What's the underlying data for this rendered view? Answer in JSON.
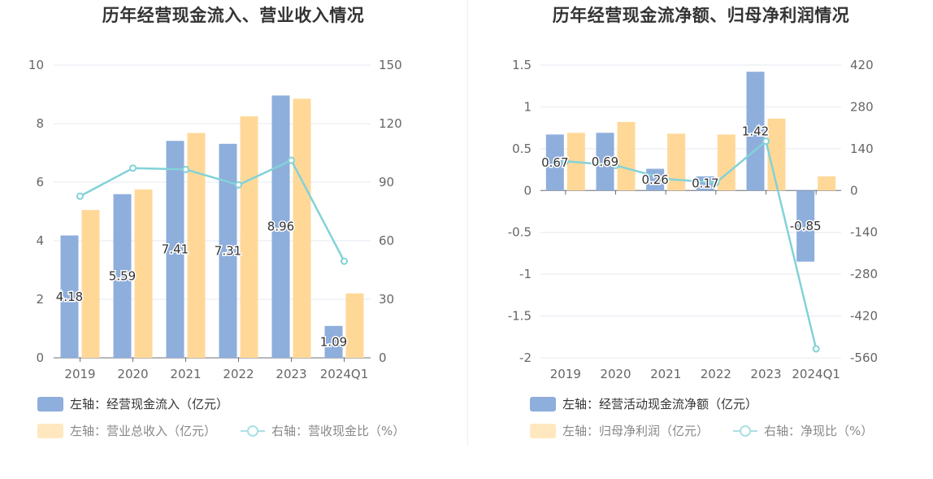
{
  "chart_data": [
    {
      "type": "bar",
      "title": "历年经营现金流入、营业收入情况",
      "categories": [
        "2019",
        "2020",
        "2021",
        "2022",
        "2023",
        "2024Q1"
      ],
      "y_left": {
        "min": 0,
        "max": 10,
        "ticks": [
          "0",
          "2",
          "4",
          "6",
          "8",
          "10"
        ]
      },
      "y_right": {
        "min": 0,
        "max": 150,
        "ticks": [
          "0",
          "30",
          "60",
          "90",
          "120",
          "150"
        ]
      },
      "series": [
        {
          "name": "左轴：经营现金流入（亿元）",
          "kind": "bar",
          "axis": "left",
          "color": "#8eaedc",
          "values": [
            4.18,
            5.59,
            7.41,
            7.31,
            8.96,
            1.09
          ],
          "labels": [
            "4.18",
            "5.59",
            "7.41",
            "7.31",
            "8.96",
            "1.09"
          ]
        },
        {
          "name": "左轴：营业总收入（亿元）",
          "kind": "bar",
          "axis": "left",
          "color": "#ffd898",
          "values": [
            5.05,
            5.75,
            7.68,
            8.25,
            8.85,
            2.2
          ]
        },
        {
          "name": "右轴：营收现金比（%）",
          "kind": "line",
          "axis": "right",
          "color": "#82d2d8",
          "values": [
            82.8,
            97.2,
            96.5,
            88.6,
            101.2,
            49.5
          ]
        }
      ],
      "legend_placement": "bottom"
    },
    {
      "type": "bar",
      "title": "历年经营现金流净额、归母净利润情况",
      "categories": [
        "2019",
        "2020",
        "2021",
        "2022",
        "2023",
        "2024Q1"
      ],
      "y_left": {
        "min": -2,
        "max": 1.5,
        "ticks": [
          "-2",
          "-1.5",
          "-1",
          "-0.5",
          "0",
          "0.5",
          "1",
          "1.5"
        ]
      },
      "y_right": {
        "min": -560,
        "max": 420,
        "ticks": [
          "-560",
          "-420",
          "-280",
          "-140",
          "0",
          "140",
          "280",
          "420"
        ]
      },
      "series": [
        {
          "name": "左轴：经营活动现金流净额（亿元）",
          "kind": "bar",
          "axis": "left",
          "color": "#8eaedc",
          "values": [
            0.67,
            0.69,
            0.26,
            0.17,
            1.42,
            -0.85
          ],
          "labels": [
            "0.67",
            "0.69",
            "0.26",
            "0.17",
            "1.42",
            "-0.85"
          ]
        },
        {
          "name": "左轴：归母净利润（亿元）",
          "kind": "bar",
          "axis": "left",
          "color": "#ffd898",
          "values": [
            0.69,
            0.82,
            0.68,
            0.67,
            0.86,
            0.17
          ]
        },
        {
          "name": "右轴：净现比（%）",
          "kind": "line",
          "axis": "right",
          "color": "#82d2d8",
          "values": [
            98,
            84,
            39,
            26,
            165,
            -530
          ]
        }
      ],
      "legend_placement": "bottom"
    }
  ]
}
